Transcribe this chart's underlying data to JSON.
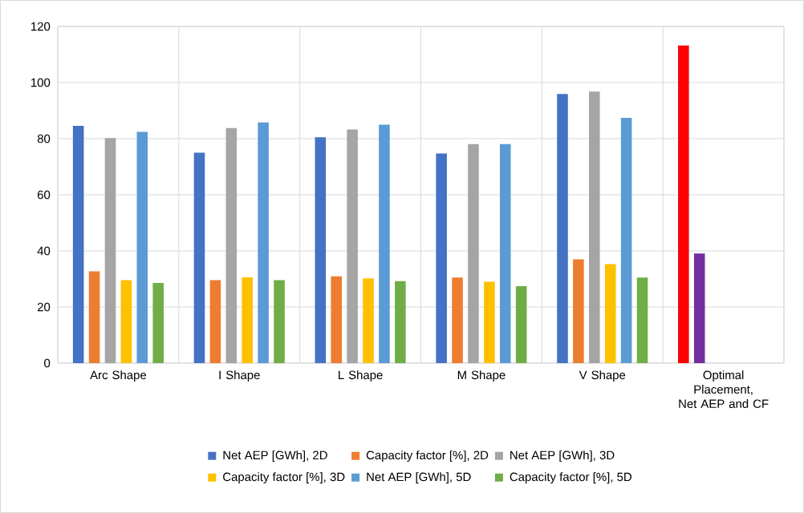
{
  "chart_data": {
    "type": "bar",
    "categories": [
      "Arc Shape",
      "I Shape",
      "L Shape",
      "M Shape",
      "V Shape",
      "Optimal Placement, Net AEP and CF"
    ],
    "series": [
      {
        "name": "Net AEP [GWh], 2D",
        "color": "#4472c4",
        "colors": [
          "#4472c4",
          "#4472c4",
          "#4472c4",
          "#4472c4",
          "#4472c4",
          "#ff0000"
        ],
        "values": [
          84.6,
          75.0,
          80.5,
          74.7,
          95.9,
          113.2
        ]
      },
      {
        "name": "Capacity factor [%], 2D",
        "color": "#ed7d31",
        "colors": [
          "#ed7d31",
          "#ed7d31",
          "#ed7d31",
          "#ed7d31",
          "#ed7d31",
          "#7030a0"
        ],
        "values": [
          32.7,
          29.6,
          30.9,
          30.5,
          37.0,
          39.1
        ]
      },
      {
        "name": "Net AEP [GWh], 3D",
        "color": "#a5a5a5",
        "values": [
          80.2,
          83.8,
          83.3,
          78.1,
          96.8,
          null
        ]
      },
      {
        "name": "Capacity factor [%], 3D",
        "color": "#ffc000",
        "values": [
          29.6,
          30.6,
          30.2,
          29.0,
          35.3,
          null
        ]
      },
      {
        "name": "Net AEP [GWh], 5D",
        "color": "#5b9bd5",
        "values": [
          82.4,
          85.8,
          85.0,
          78.1,
          87.4,
          null
        ]
      },
      {
        "name": "Capacity factor [%], 5D",
        "color": "#70ad47",
        "values": [
          28.6,
          29.6,
          29.2,
          27.4,
          30.5,
          null
        ]
      }
    ],
    "ylim": [
      0,
      120
    ],
    "yticks": [
      0,
      20,
      40,
      60,
      80,
      100,
      120
    ],
    "grid": true,
    "legend": "bottom"
  }
}
